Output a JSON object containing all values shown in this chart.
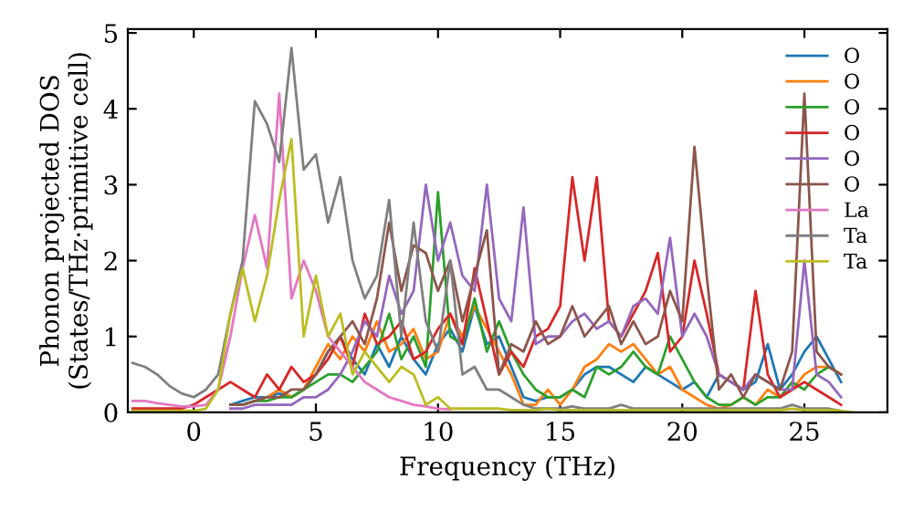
{
  "chart_data": {
    "type": "line",
    "xlabel": "Frequency (THz)",
    "ylabel": "Phonon projected DOS\n(States/THz·primitive cell)",
    "x": [
      -2.5,
      -2.0,
      -1.5,
      -1.0,
      -0.5,
      0.0,
      0.5,
      1.0,
      1.5,
      2.0,
      2.5,
      3.0,
      3.5,
      4.0,
      4.5,
      5.0,
      5.5,
      6.0,
      6.5,
      7.0,
      7.5,
      8.0,
      8.5,
      9.0,
      9.5,
      10.0,
      10.5,
      11.0,
      11.5,
      12.0,
      12.5,
      13.0,
      13.5,
      14.0,
      14.5,
      15.0,
      15.5,
      16.0,
      16.5,
      17.0,
      17.5,
      18.0,
      18.5,
      19.0,
      19.5,
      20.0,
      20.5,
      21.0,
      21.5,
      22.0,
      22.5,
      23.0,
      23.5,
      24.0,
      24.5,
      25.0,
      25.5,
      26.0,
      26.5,
      27.0
    ],
    "xlim": [
      -2.7,
      28.4
    ],
    "ylim": [
      0,
      5.05
    ],
    "xticks": [
      0,
      5,
      10,
      15,
      20,
      25
    ],
    "yticks": [
      0,
      1,
      2,
      3,
      4,
      5
    ],
    "grid": false,
    "legend": "top right",
    "series": [
      {
        "name": "O",
        "color": "#1f77b4",
        "values": [
          null,
          null,
          null,
          null,
          null,
          null,
          null,
          null,
          0.1,
          0.15,
          0.2,
          0.2,
          0.25,
          0.2,
          0.3,
          0.5,
          0.8,
          1.0,
          0.7,
          0.5,
          0.9,
          0.6,
          1.0,
          0.7,
          0.5,
          0.9,
          1.1,
          0.8,
          1.4,
          0.9,
          1.0,
          0.6,
          0.2,
          0.15,
          0.2,
          0.2,
          0.3,
          0.5,
          0.6,
          0.6,
          0.5,
          0.4,
          0.6,
          0.5,
          0.4,
          0.3,
          0.4,
          0.2,
          0.5,
          0.4,
          0.3,
          0.4,
          0.9,
          0.3,
          0.5,
          0.8,
          1.0,
          0.7,
          0.4,
          null
        ]
      },
      {
        "name": "O",
        "color": "#ff7f0e",
        "values": [
          null,
          null,
          null,
          null,
          null,
          null,
          null,
          null,
          null,
          null,
          0.15,
          0.2,
          0.3,
          0.2,
          0.3,
          0.6,
          0.9,
          0.7,
          1.0,
          0.8,
          1.2,
          0.8,
          0.9,
          1.1,
          0.7,
          0.8,
          1.3,
          1.0,
          1.4,
          1.1,
          0.8,
          0.5,
          0.1,
          0.1,
          0.3,
          0.1,
          0.3,
          0.6,
          0.7,
          0.9,
          0.8,
          0.9,
          0.7,
          0.5,
          0.6,
          0.3,
          0.2,
          0.1,
          0.05,
          0.1,
          0.2,
          0.1,
          0.3,
          0.2,
          0.3,
          0.5,
          0.6,
          0.6,
          0.5,
          null
        ]
      },
      {
        "name": "O",
        "color": "#2ca02c",
        "values": [
          null,
          null,
          null,
          null,
          null,
          null,
          null,
          null,
          0.1,
          0.1,
          0.15,
          0.15,
          0.2,
          0.2,
          0.3,
          0.4,
          0.5,
          0.5,
          0.4,
          0.6,
          0.8,
          1.3,
          0.7,
          1.0,
          0.6,
          2.9,
          1.0,
          0.9,
          1.5,
          0.8,
          1.2,
          0.8,
          0.5,
          0.3,
          0.2,
          0.2,
          0.3,
          0.2,
          0.6,
          0.5,
          0.6,
          0.8,
          0.6,
          0.5,
          1.0,
          0.7,
          0.4,
          0.2,
          0.1,
          0.1,
          0.2,
          0.1,
          0.2,
          0.2,
          0.4,
          0.3,
          0.5,
          0.6,
          0.5,
          null
        ]
      },
      {
        "name": "O",
        "color": "#d62728",
        "values": [
          0.05,
          0.05,
          0.05,
          0.05,
          0.05,
          0.1,
          0.2,
          0.3,
          0.4,
          0.3,
          0.2,
          0.5,
          0.3,
          0.6,
          0.4,
          0.5,
          0.7,
          1.0,
          0.6,
          1.3,
          0.9,
          1.0,
          1.2,
          0.7,
          0.8,
          1.1,
          1.3,
          0.9,
          1.9,
          1.2,
          0.5,
          0.8,
          0.6,
          1.0,
          1.1,
          1.4,
          3.1,
          2.0,
          3.1,
          1.2,
          1.0,
          1.3,
          1.6,
          2.1,
          0.8,
          1.0,
          2.0,
          1.3,
          0.5,
          0.4,
          0.3,
          1.6,
          0.5,
          0.2,
          0.3,
          0.4,
          0.3,
          0.2,
          0.1,
          null
        ]
      },
      {
        "name": "O",
        "color": "#9467bd",
        "values": [
          null,
          null,
          null,
          null,
          null,
          null,
          null,
          null,
          0.05,
          0.05,
          0.1,
          0.1,
          0.1,
          0.1,
          0.2,
          0.2,
          0.3,
          0.5,
          0.8,
          1.2,
          1.0,
          1.8,
          1.3,
          1.6,
          3.0,
          2.0,
          2.5,
          1.8,
          1.6,
          3.0,
          1.5,
          1.2,
          2.7,
          0.9,
          1.0,
          1.0,
          1.2,
          1.3,
          1.1,
          1.2,
          1.0,
          1.4,
          1.5,
          1.3,
          2.3,
          1.0,
          1.3,
          1.0,
          0.5,
          0.4,
          0.3,
          0.5,
          0.4,
          0.3,
          0.3,
          2.0,
          0.5,
          0.4,
          0.2,
          null
        ]
      },
      {
        "name": "O",
        "color": "#8c564b",
        "values": [
          null,
          null,
          null,
          null,
          null,
          null,
          null,
          null,
          0.1,
          0.1,
          0.15,
          0.2,
          0.2,
          0.3,
          0.3,
          0.5,
          0.8,
          1.0,
          1.2,
          0.9,
          1.5,
          2.5,
          1.6,
          2.2,
          2.1,
          1.6,
          2.0,
          1.2,
          1.8,
          2.4,
          0.5,
          0.9,
          0.8,
          1.2,
          0.9,
          1.0,
          1.4,
          1.0,
          1.2,
          1.4,
          0.9,
          1.2,
          0.9,
          1.0,
          1.6,
          1.2,
          3.5,
          1.8,
          0.3,
          0.5,
          0.2,
          0.5,
          0.4,
          0.3,
          0.8,
          4.2,
          0.8,
          0.6,
          0.5,
          null
        ]
      },
      {
        "name": "La",
        "color": "#e377c2",
        "values": [
          0.15,
          0.15,
          0.12,
          0.1,
          0.08,
          0.08,
          0.1,
          0.3,
          1.0,
          1.9,
          2.6,
          1.9,
          4.2,
          1.5,
          2.0,
          1.6,
          1.0,
          0.8,
          0.6,
          0.4,
          0.3,
          0.2,
          0.15,
          0.1,
          0.08,
          0.05,
          0.04,
          null,
          null,
          null,
          null,
          null,
          null,
          null,
          null,
          null,
          null,
          null,
          null,
          null,
          null,
          null,
          null,
          null,
          null,
          null,
          null,
          null,
          null,
          null,
          null,
          null,
          null,
          null,
          null,
          null,
          null,
          null,
          null,
          null
        ]
      },
      {
        "name": "Ta",
        "color": "#7f7f7f",
        "values": [
          0.65,
          0.6,
          0.5,
          0.35,
          0.25,
          0.2,
          0.3,
          0.5,
          1.3,
          2.0,
          4.1,
          3.8,
          3.3,
          4.8,
          3.2,
          3.4,
          2.5,
          3.1,
          2.0,
          1.5,
          1.8,
          2.8,
          1.0,
          2.5,
          1.2,
          0.8,
          2.0,
          0.5,
          0.6,
          0.3,
          0.3,
          0.2,
          0.1,
          0.05,
          0.05,
          0.05,
          0.08,
          0.05,
          0.05,
          0.05,
          0.1,
          0.05,
          0.05,
          0.05,
          0.05,
          0.05,
          0.05,
          0.05,
          0.05,
          0.05,
          0.05,
          0.05,
          0.05,
          0.05,
          0.1,
          0.05,
          0.05,
          0.05,
          0.02,
          null
        ]
      },
      {
        "name": "Ta",
        "color": "#bcbd22",
        "values": [
          0.02,
          0.02,
          0.02,
          0.02,
          0.02,
          0.02,
          0.05,
          0.3,
          1.3,
          1.9,
          1.2,
          1.8,
          2.8,
          3.6,
          1.0,
          1.8,
          1.0,
          1.3,
          0.5,
          0.8,
          0.6,
          0.4,
          0.6,
          0.5,
          0.1,
          0.2,
          0.05,
          0.05,
          0.05,
          0.05,
          0.05,
          0.03,
          0.03,
          0.03,
          0.05,
          0.03,
          0.03,
          0.03,
          0.03,
          0.03,
          0.03,
          0.03,
          0.03,
          0.03,
          0.03,
          0.03,
          0.03,
          0.03,
          0.03,
          0.03,
          0.03,
          0.03,
          0.03,
          0.03,
          0.05,
          0.03,
          0.03,
          0.03,
          0.02,
          0
        ]
      }
    ]
  }
}
